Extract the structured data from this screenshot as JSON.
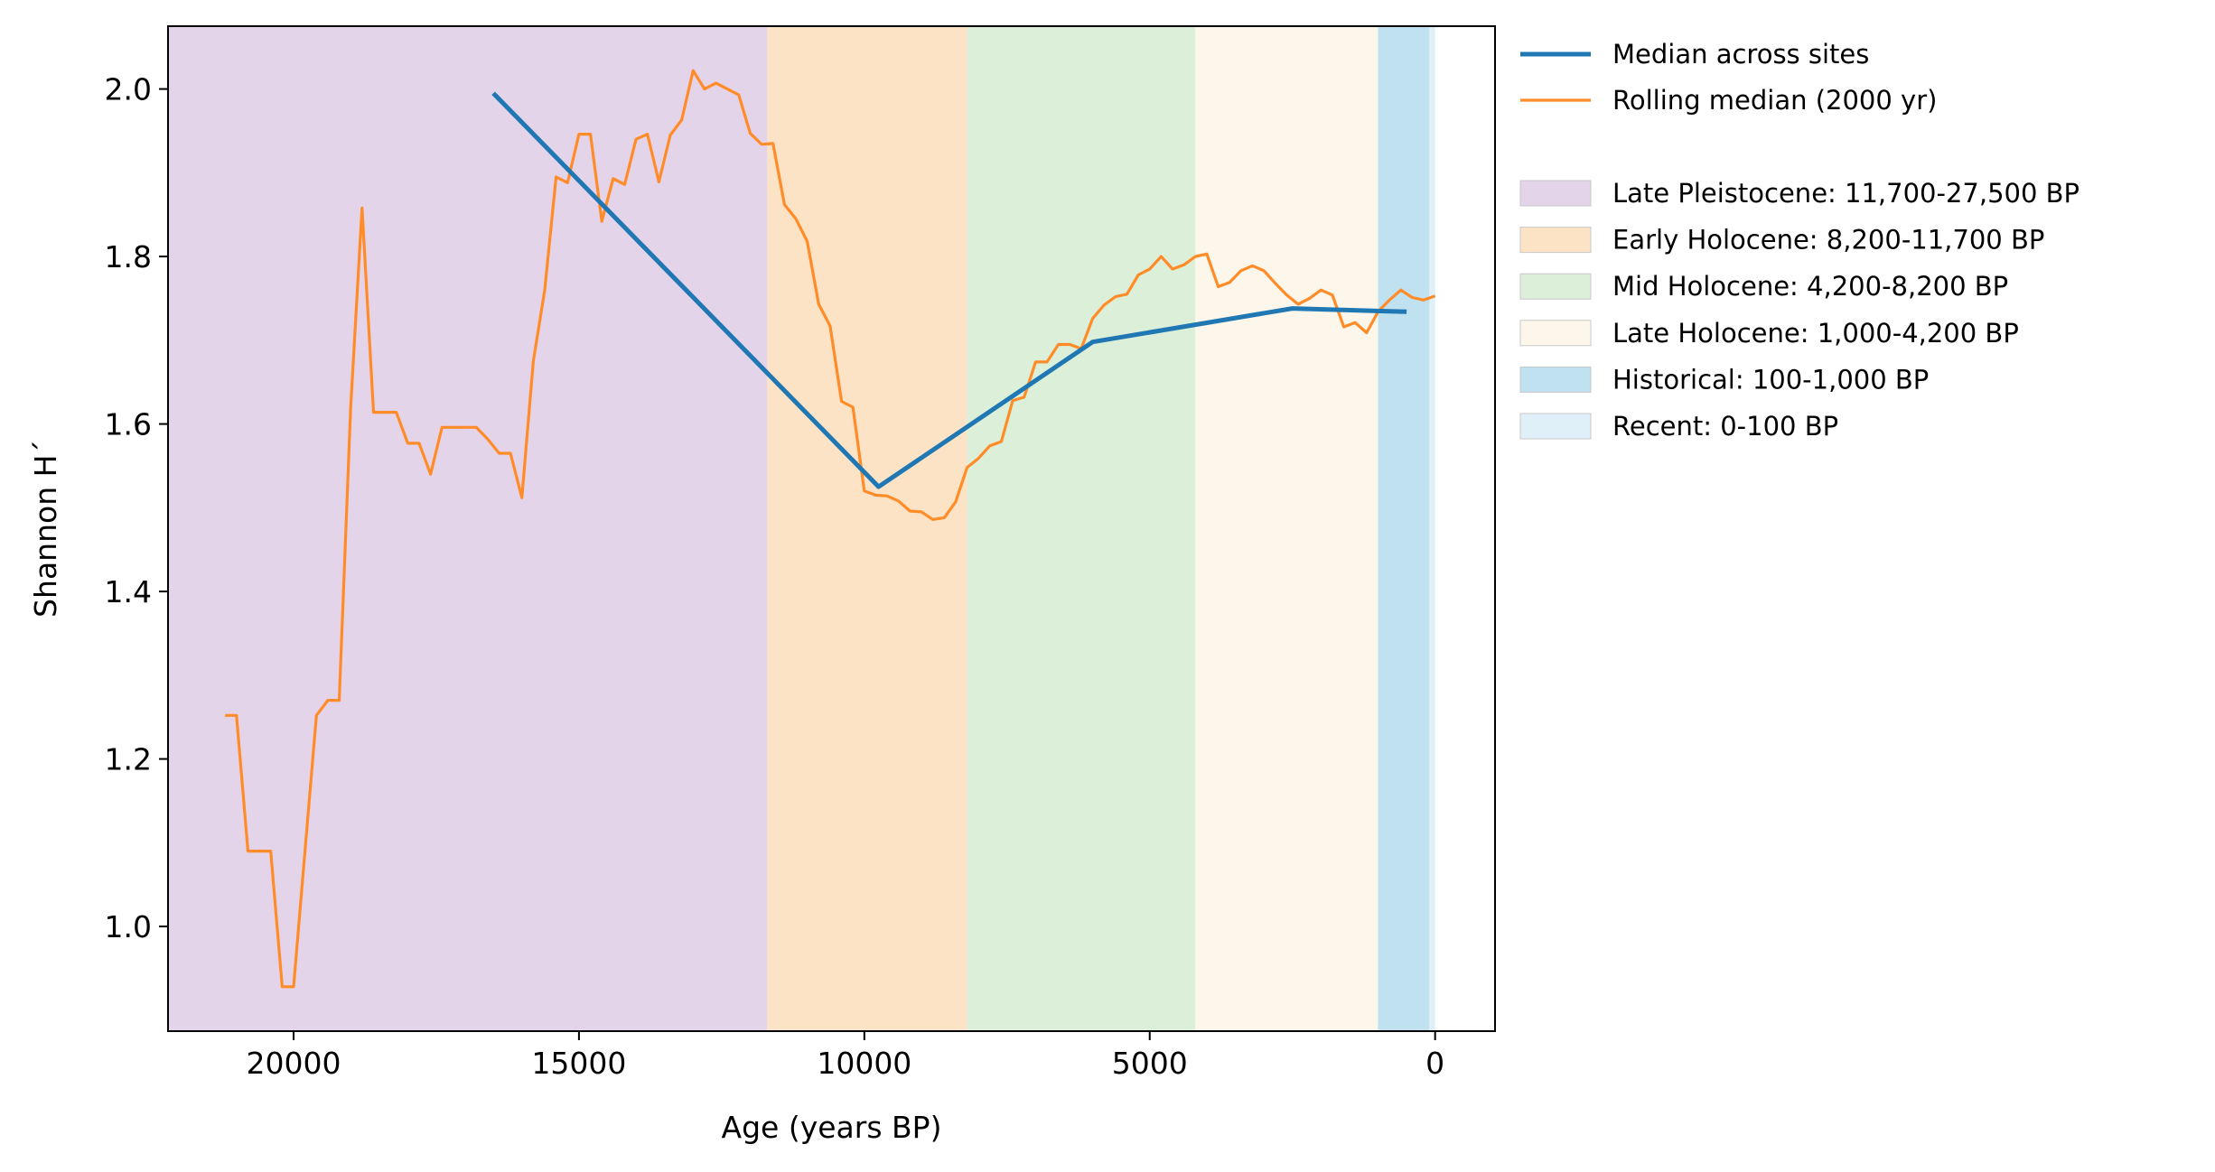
{
  "chart_data": {
    "type": "line",
    "xlabel": "Age (years BP)",
    "ylabel": "Shannon H´",
    "xlim": [
      22200,
      -1050
    ],
    "ylim": [
      0.875,
      2.075
    ],
    "x_reversed": true,
    "x_ticks": [
      20000,
      15000,
      10000,
      5000,
      0
    ],
    "x_tick_labels": [
      "20000",
      "15000",
      "10000",
      "5000",
      "0"
    ],
    "y_ticks": [
      1.0,
      1.2,
      1.4,
      1.6,
      1.8,
      2.0
    ],
    "y_tick_labels": [
      "1.0",
      "1.2",
      "1.4",
      "1.6",
      "1.8",
      "2.0"
    ],
    "grid": false,
    "legend_position": "outside-right-top",
    "periods": [
      {
        "label": "Late Pleistocene: 11,700-27,500 BP",
        "start": 27500,
        "end": 11700,
        "color": "#e4d4ea"
      },
      {
        "label": "Early Holocene: 8,200-11,700 BP",
        "start": 11700,
        "end": 8200,
        "color": "#fde3c6"
      },
      {
        "label": "Mid Holocene: 4,200-8,200 BP",
        "start": 8200,
        "end": 4200,
        "color": "#dcefd8"
      },
      {
        "label": "Late Holocene: 1,000-4,200 BP",
        "start": 4200,
        "end": 1000,
        "color": "#fdf6ea"
      },
      {
        "label": "Historical: 100-1,000 BP",
        "start": 1000,
        "end": 100,
        "color": "#bfe1f0"
      },
      {
        "label": "Recent: 0-100 BP",
        "start": 100,
        "end": 0,
        "color": "#dff0f9"
      }
    ],
    "series": [
      {
        "name": "Median across sites",
        "color": "#1f77b4",
        "x": [
          16500,
          9750,
          6000,
          2500,
          500
        ],
        "y": [
          1.995,
          1.525,
          1.698,
          1.738,
          1.734
        ]
      },
      {
        "name": "Rolling median (2000 yr)",
        "color": "#ff8c28",
        "x": [
          21200,
          21000,
          20800,
          20600,
          20400,
          20200,
          20000,
          19800,
          19600,
          19400,
          19200,
          19000,
          18800,
          18600,
          18400,
          18200,
          18000,
          17800,
          17600,
          17400,
          17200,
          17000,
          16800,
          16600,
          16400,
          16200,
          16000,
          15800,
          15600,
          15400,
          15200,
          15000,
          14800,
          14600,
          14400,
          14200,
          14000,
          13800,
          13600,
          13400,
          13200,
          13000,
          12800,
          12600,
          12400,
          12200,
          12000,
          11800,
          11600,
          11400,
          11200,
          11000,
          10800,
          10600,
          10400,
          10200,
          10000,
          9800,
          9600,
          9400,
          9200,
          9000,
          8800,
          8600,
          8400,
          8200,
          8000,
          7800,
          7600,
          7400,
          7200,
          7000,
          6800,
          6600,
          6400,
          6200,
          6000,
          5800,
          5600,
          5400,
          5200,
          5000,
          4800,
          4600,
          4400,
          4200,
          4000,
          3800,
          3600,
          3400,
          3200,
          3000,
          2800,
          2600,
          2400,
          2200,
          2000,
          1800,
          1600,
          1400,
          1200,
          1000,
          800,
          600,
          400,
          200,
          0
        ],
        "y": [
          1.252,
          1.252,
          1.09,
          1.09,
          1.09,
          0.928,
          0.928,
          1.09,
          1.252,
          1.27,
          1.27,
          1.62,
          1.858,
          1.614,
          1.614,
          1.614,
          1.577,
          1.577,
          1.54,
          1.596,
          1.596,
          1.596,
          1.596,
          1.582,
          1.565,
          1.565,
          1.512,
          1.675,
          1.76,
          1.895,
          1.888,
          1.946,
          1.946,
          1.842,
          1.893,
          1.886,
          1.94,
          1.946,
          1.889,
          1.945,
          1.963,
          2.022,
          2.0,
          2.007,
          2.0,
          1.993,
          1.947,
          1.934,
          1.935,
          1.862,
          1.845,
          1.818,
          1.743,
          1.717,
          1.627,
          1.62,
          1.52,
          1.515,
          1.514,
          1.508,
          1.496,
          1.495,
          1.486,
          1.488,
          1.507,
          1.548,
          1.559,
          1.574,
          1.579,
          1.628,
          1.632,
          1.674,
          1.674,
          1.695,
          1.695,
          1.69,
          1.726,
          1.742,
          1.752,
          1.755,
          1.778,
          1.785,
          1.8,
          1.785,
          1.79,
          1.8,
          1.803,
          1.764,
          1.769,
          1.783,
          1.789,
          1.783,
          1.768,
          1.754,
          1.743,
          1.75,
          1.76,
          1.754,
          1.716,
          1.721,
          1.709,
          1.734,
          1.748,
          1.76,
          1.751,
          1.748,
          1.753
        ]
      }
    ]
  }
}
